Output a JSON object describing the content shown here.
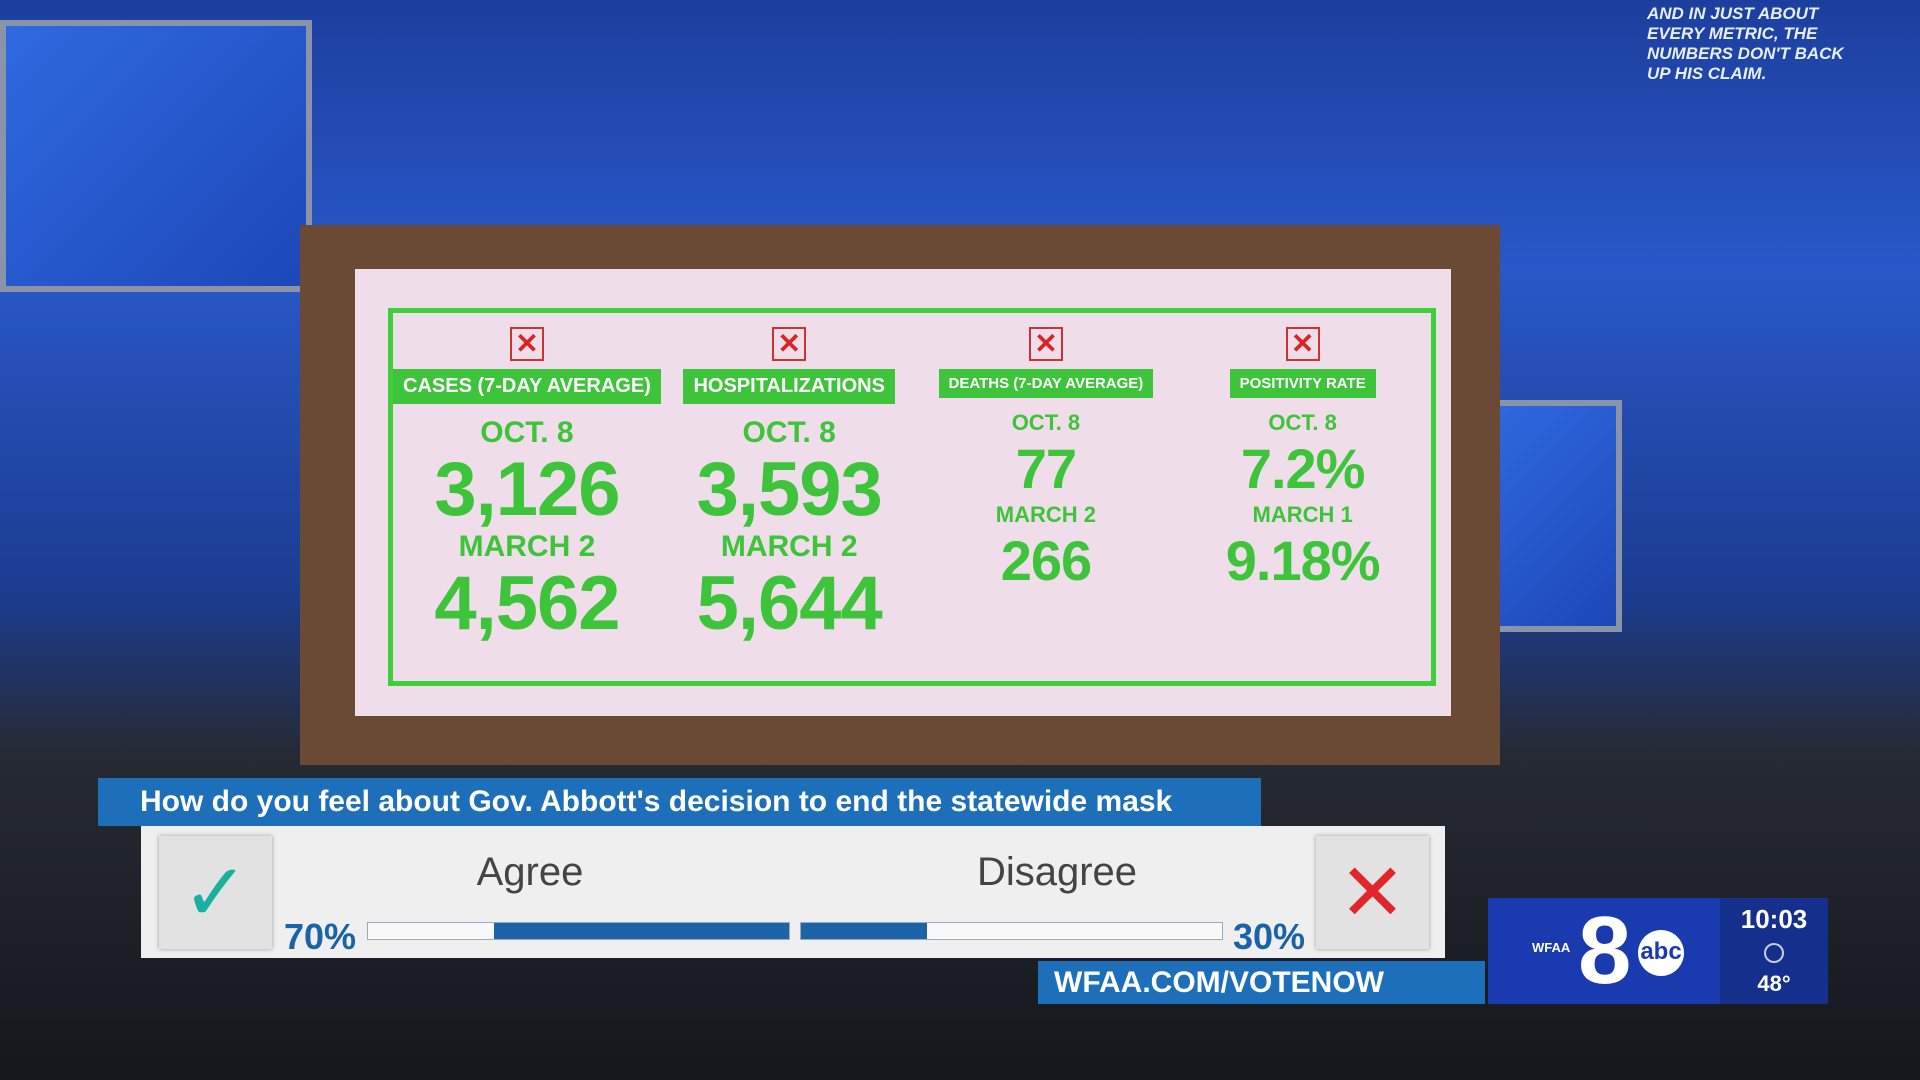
{
  "corner_text": "AND IN JUST ABOUT EVERY METRIC, THE NUMBERS DON'T BACK UP HIS CLAIM.",
  "board": {
    "columns": [
      {
        "header": "CASES (7-DAY AVERAGE)",
        "rows": [
          {
            "label": "OCT. 8",
            "value": "3,126"
          },
          {
            "label": "MARCH 2",
            "value": "4,562"
          }
        ]
      },
      {
        "header": "HOSPITALIZATIONS",
        "rows": [
          {
            "label": "OCT. 8",
            "value": "3,593"
          },
          {
            "label": "MARCH 2",
            "value": "5,644"
          }
        ]
      },
      {
        "header": "DEATHS (7-DAY AVERAGE)",
        "rows": [
          {
            "label": "OCT. 8",
            "value": "77"
          },
          {
            "label": "MARCH 2",
            "value": "266"
          }
        ]
      },
      {
        "header": "POSITIVITY RATE",
        "rows": [
          {
            "label": "OCT. 8",
            "value": "7.2%"
          },
          {
            "label": "MARCH 1",
            "value": "9.18%"
          }
        ]
      }
    ]
  },
  "poll": {
    "question": "How do you feel about Gov. Abbott's decision to end the statewide mask mandate?",
    "agree": {
      "label": "Agree",
      "percent": 70,
      "percent_label": "70%"
    },
    "disagree": {
      "label": "Disagree",
      "percent": 30,
      "percent_label": "30%"
    },
    "url": "WFAA.COM/VOTENOW"
  },
  "station": {
    "call_sign": "WFAA",
    "channel": "8",
    "network": "abc",
    "time": "10:03",
    "temperature": "48°"
  }
}
